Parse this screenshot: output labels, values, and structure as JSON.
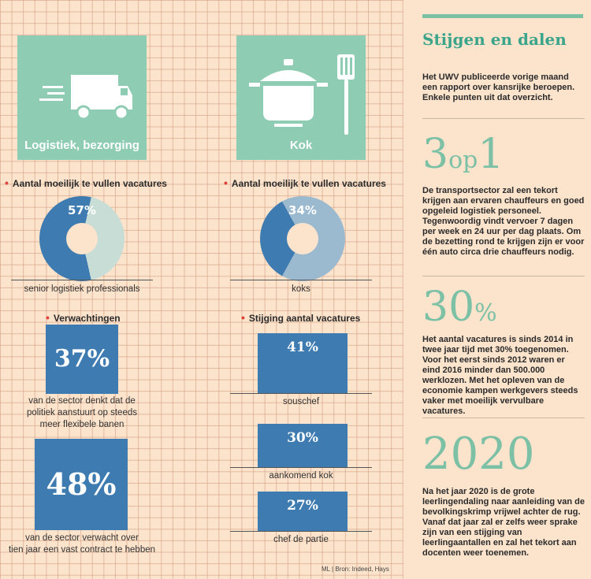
{
  "colors": {
    "teal": "#8ecdb4",
    "blue": "#3e7bb0",
    "light_blue": "#9bb9cf",
    "pale": "#c9ddd7",
    "sidebar_accent": "#7cc0a5",
    "title_green": "#3aa58a",
    "bullet_red": "#e0403a"
  },
  "left_column": {
    "tile_label": "Logistiek, bezorging",
    "tile_icon": "truck-icon",
    "donut_heading": "Aantal moeilijk te vullen vacatures",
    "donut_pct": "57%",
    "donut_value": 57,
    "donut_caption": "senior logistiek professionals",
    "expect_heading": "Verwachtingen",
    "stat1_value": "37%",
    "stat1_line1": "van de sector denkt dat de",
    "stat1_line2": "politiek aanstuurt op steeds",
    "stat1_line3": "meer flexibele banen",
    "stat2_value": "48%",
    "stat2_line1": "van de sector verwacht over",
    "stat2_line2": "tien jaar een vast contract te hebben"
  },
  "middle_column": {
    "tile_label": "Kok",
    "tile_icon": "cooking-pot-icon",
    "donut_heading": "Aantal moeilijk te vullen vacatures",
    "donut_pct": "34%",
    "donut_value": 34,
    "donut_caption": "koks",
    "rise_heading": "Stijging aantal vacatures",
    "bars": [
      {
        "value": "41%",
        "label": "souschef"
      },
      {
        "value": "30%",
        "label": "aankomend kok"
      },
      {
        "value": "27%",
        "label": "chef de partie"
      }
    ],
    "source": "ML | Bron: Indeed, Hays"
  },
  "sidebar": {
    "title": "Stijgen en dalen",
    "intro": "Het UWV publiceerde vorige maand een rapport over kansrijke beroepen. Enkele punten uit dat overzicht.",
    "fact1_a": "3",
    "fact1_b": "op",
    "fact1_c": "1",
    "fact1_text": "De transportsector zal een tekort krijgen aan ervaren chauffeurs en goed opgeleid logistiek personeel. Tegenwoordig vindt vervoer 7 dagen per week en 24 uur per dag plaats. Om de bezetting rond te krijgen zijn er voor één auto circa drie chauffeurs nodig.",
    "fact2_num": "30",
    "fact2_unit": "%",
    "fact2_text": "Het aantal vacatures is sinds 2014 in twee jaar tijd met 30% toegenomen. Voor het eerst sinds 2012 waren er eind 2016 minder dan 500.000 werklozen. Met het opleven van de economie kampen werkgevers steeds vaker met moeilijk vervulbare vacatures.",
    "fact3_num": "2020",
    "fact3_text": "Na het jaar 2020 is de grote leerlingendaling naar aanleiding van de bevolkingskrimp vrijwel achter de rug. Vanaf dat jaar zal er zelfs weer sprake zijn van een stijging van leerlingaantallen en zal het tekort aan docenten weer toenemen."
  }
}
